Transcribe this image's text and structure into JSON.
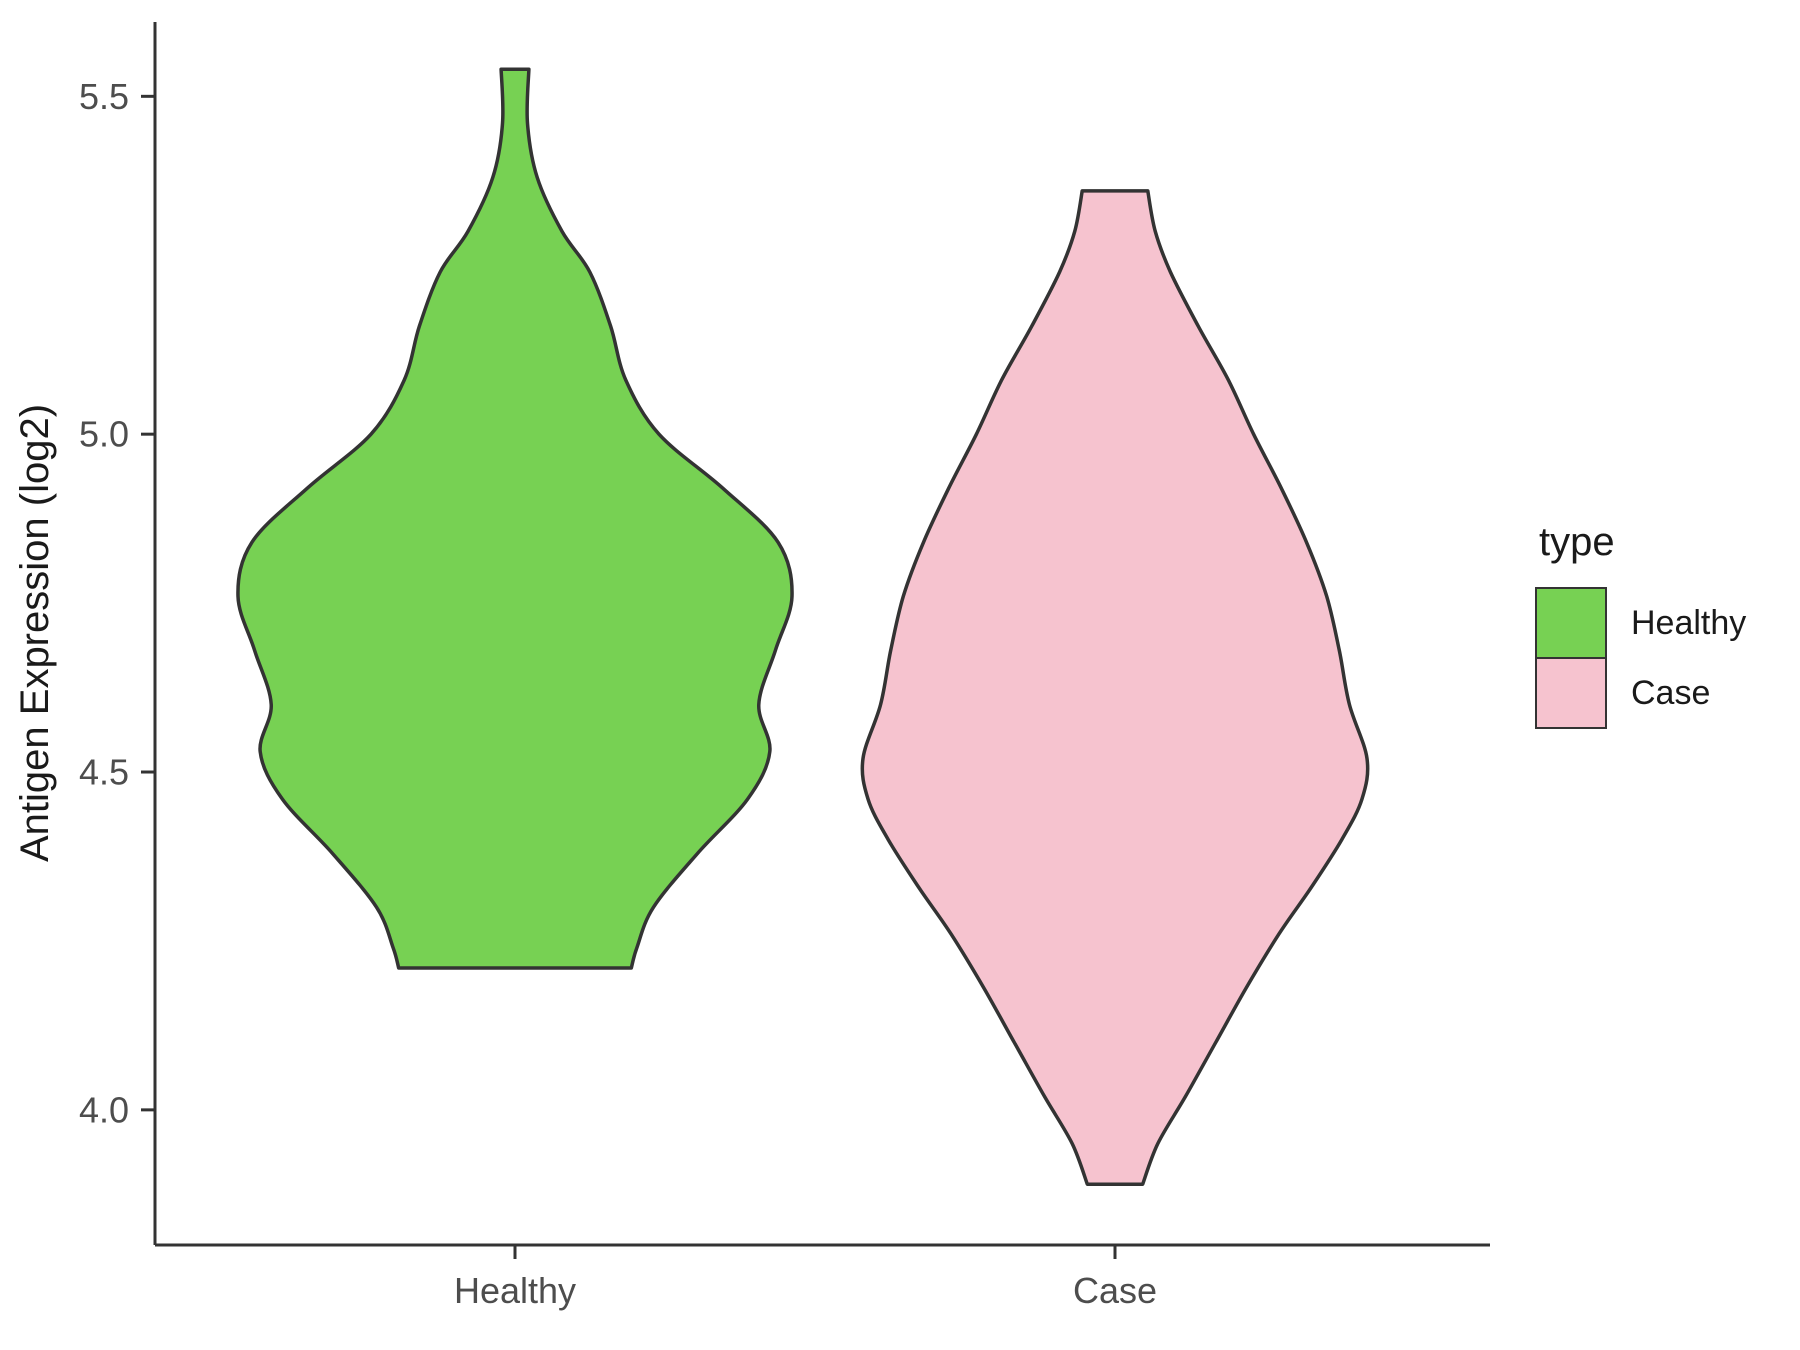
{
  "chart_data": {
    "type": "violin",
    "title": "",
    "xlabel": "",
    "ylabel": "Antigen Expression (log2)",
    "categories": [
      "Healthy",
      "Case"
    ],
    "ylim": [
      3.8,
      5.61
    ],
    "yticks": [
      4.0,
      4.5,
      5.0,
      5.5
    ],
    "grid": false,
    "legend_position": "right",
    "legend": {
      "title": "type",
      "entries": [
        {
          "label": "Healthy",
          "color": "#77D153"
        },
        {
          "label": "Case",
          "color": "#F6C3CF"
        }
      ]
    },
    "series": [
      {
        "name": "Healthy",
        "fill": "#77D153",
        "stroke": "#333333",
        "range": [
          4.21,
          5.54
        ],
        "peak": 4.76,
        "profile": [
          [
            5.54,
            0.05
          ],
          [
            5.46,
            0.045
          ],
          [
            5.38,
            0.08
          ],
          [
            5.3,
            0.17
          ],
          [
            5.24,
            0.27
          ],
          [
            5.16,
            0.345
          ],
          [
            5.08,
            0.4
          ],
          [
            5.0,
            0.52
          ],
          [
            4.92,
            0.75
          ],
          [
            4.84,
            0.95
          ],
          [
            4.76,
            1.0
          ],
          [
            4.68,
            0.94
          ],
          [
            4.6,
            0.88
          ],
          [
            4.53,
            0.92
          ],
          [
            4.46,
            0.84
          ],
          [
            4.38,
            0.66
          ],
          [
            4.3,
            0.5
          ],
          [
            4.24,
            0.44
          ],
          [
            4.21,
            0.42
          ]
        ]
      },
      {
        "name": "Case",
        "fill": "#F6C3CF",
        "stroke": "#333333",
        "range": [
          3.89,
          5.36
        ],
        "peak": 4.5,
        "profile": [
          [
            5.36,
            0.13
          ],
          [
            5.3,
            0.16
          ],
          [
            5.24,
            0.22
          ],
          [
            5.16,
            0.33
          ],
          [
            5.08,
            0.45
          ],
          [
            5.0,
            0.55
          ],
          [
            4.92,
            0.66
          ],
          [
            4.84,
            0.76
          ],
          [
            4.76,
            0.84
          ],
          [
            4.68,
            0.89
          ],
          [
            4.6,
            0.93
          ],
          [
            4.52,
            1.0
          ],
          [
            4.46,
            0.98
          ],
          [
            4.4,
            0.9
          ],
          [
            4.33,
            0.78
          ],
          [
            4.26,
            0.65
          ],
          [
            4.18,
            0.52
          ],
          [
            4.1,
            0.4
          ],
          [
            4.02,
            0.28
          ],
          [
            3.95,
            0.17
          ],
          [
            3.89,
            0.11
          ]
        ]
      }
    ]
  }
}
